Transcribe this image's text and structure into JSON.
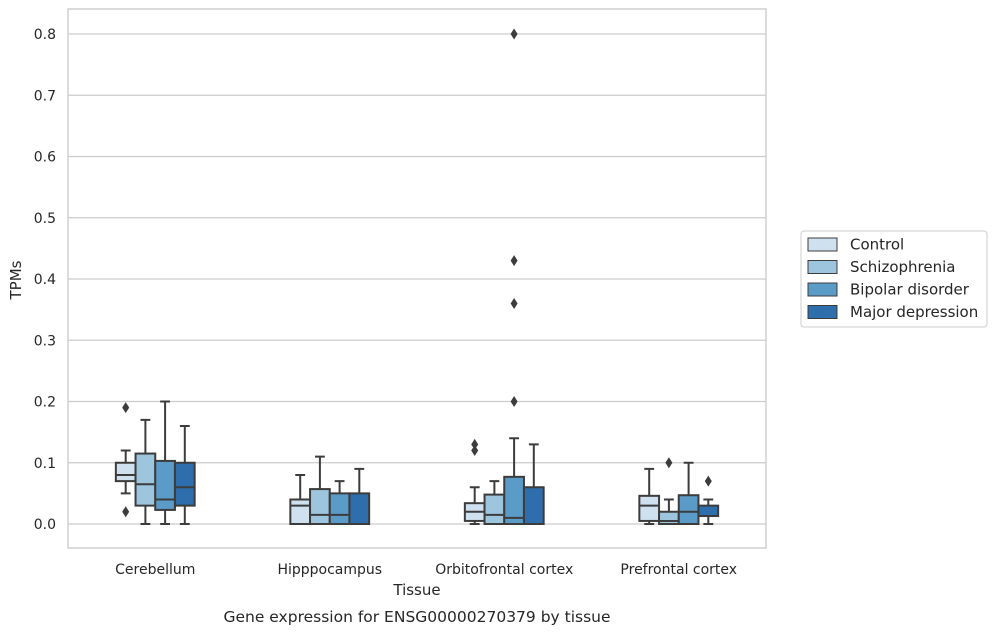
{
  "chart_data": {
    "type": "box",
    "title": "",
    "caption": "Gene expression for ENSG00000270379 by tissue",
    "xlabel": "Tissue",
    "ylabel": "TPMs",
    "ylim": [
      -0.04,
      0.84
    ],
    "yticks": [
      0.0,
      0.1,
      0.2,
      0.3,
      0.4,
      0.5,
      0.6,
      0.7,
      0.8
    ],
    "ytick_labels": [
      "0.0",
      "0.1",
      "0.2",
      "0.3",
      "0.4",
      "0.5",
      "0.6",
      "0.7",
      "0.8"
    ],
    "grid": "horizontal",
    "legend_position": "right",
    "categories": [
      "Cerebellum",
      "Hipppocampus",
      "Orbitofrontal cortex",
      "Prefrontal cortex"
    ],
    "series": [
      {
        "name": "Control",
        "color": "#cfe0ef",
        "boxes": [
          {
            "whisker_low": 0.05,
            "q1": 0.07,
            "median": 0.08,
            "q3": 0.1,
            "whisker_high": 0.12,
            "outliers": [
              0.19,
              0.02
            ]
          },
          {
            "whisker_low": 0.0,
            "q1": 0.0,
            "median": 0.03,
            "q3": 0.04,
            "whisker_high": 0.08,
            "outliers": []
          },
          {
            "whisker_low": 0.0,
            "q1": 0.005,
            "median": 0.02,
            "q3": 0.034,
            "whisker_high": 0.06,
            "outliers": [
              0.13,
              0.12
            ]
          },
          {
            "whisker_low": 0.0,
            "q1": 0.005,
            "median": 0.03,
            "q3": 0.046,
            "whisker_high": 0.09,
            "outliers": []
          }
        ]
      },
      {
        "name": "Schizophrenia",
        "color": "#9ec5de",
        "boxes": [
          {
            "whisker_low": 0.0,
            "q1": 0.03,
            "median": 0.065,
            "q3": 0.115,
            "whisker_high": 0.17,
            "outliers": []
          },
          {
            "whisker_low": 0.0,
            "q1": 0.0,
            "median": 0.015,
            "q3": 0.057,
            "whisker_high": 0.11,
            "outliers": []
          },
          {
            "whisker_low": 0.0,
            "q1": 0.0,
            "median": 0.015,
            "q3": 0.048,
            "whisker_high": 0.07,
            "outliers": []
          },
          {
            "whisker_low": 0.0,
            "q1": 0.0,
            "median": 0.005,
            "q3": 0.02,
            "whisker_high": 0.04,
            "outliers": [
              0.1
            ]
          }
        ]
      },
      {
        "name": "Bipolar disorder",
        "color": "#5b9bc7",
        "boxes": [
          {
            "whisker_low": 0.0,
            "q1": 0.023,
            "median": 0.04,
            "q3": 0.103,
            "whisker_high": 0.2,
            "outliers": []
          },
          {
            "whisker_low": 0.0,
            "q1": 0.0,
            "median": 0.015,
            "q3": 0.05,
            "whisker_high": 0.07,
            "outliers": []
          },
          {
            "whisker_low": 0.0,
            "q1": 0.0,
            "median": 0.01,
            "q3": 0.077,
            "whisker_high": 0.14,
            "outliers": [
              0.8,
              0.43,
              0.36,
              0.2
            ]
          },
          {
            "whisker_low": 0.0,
            "q1": 0.0,
            "median": 0.02,
            "q3": 0.047,
            "whisker_high": 0.1,
            "outliers": []
          }
        ]
      },
      {
        "name": "Major depression",
        "color": "#2e6eac",
        "boxes": [
          {
            "whisker_low": 0.0,
            "q1": 0.03,
            "median": 0.06,
            "q3": 0.1,
            "whisker_high": 0.16,
            "outliers": []
          },
          {
            "whisker_low": 0.0,
            "q1": 0.0,
            "median": 0.0,
            "q3": 0.05,
            "whisker_high": 0.09,
            "outliers": []
          },
          {
            "whisker_low": 0.0,
            "q1": 0.0,
            "median": 0.0,
            "q3": 0.06,
            "whisker_high": 0.13,
            "outliers": []
          },
          {
            "whisker_low": 0.0,
            "q1": 0.013,
            "median": 0.013,
            "q3": 0.03,
            "whisker_high": 0.04,
            "outliers": [
              0.07
            ]
          }
        ]
      }
    ]
  }
}
